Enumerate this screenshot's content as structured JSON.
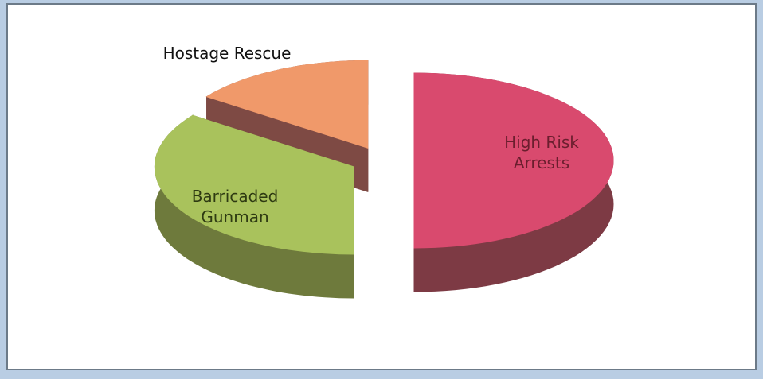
{
  "chart_data": {
    "type": "pie",
    "categories": [
      "High Risk Arrests",
      "Barricaded Gunman",
      "Hostage Rescue"
    ],
    "values": [
      50,
      35,
      15
    ],
    "colors": [
      "#d94a6e",
      "#a9c25c",
      "#f0996a"
    ],
    "side_colors": [
      "#7d3a44",
      "#6e7a3c",
      "#7e4a44"
    ]
  }
}
